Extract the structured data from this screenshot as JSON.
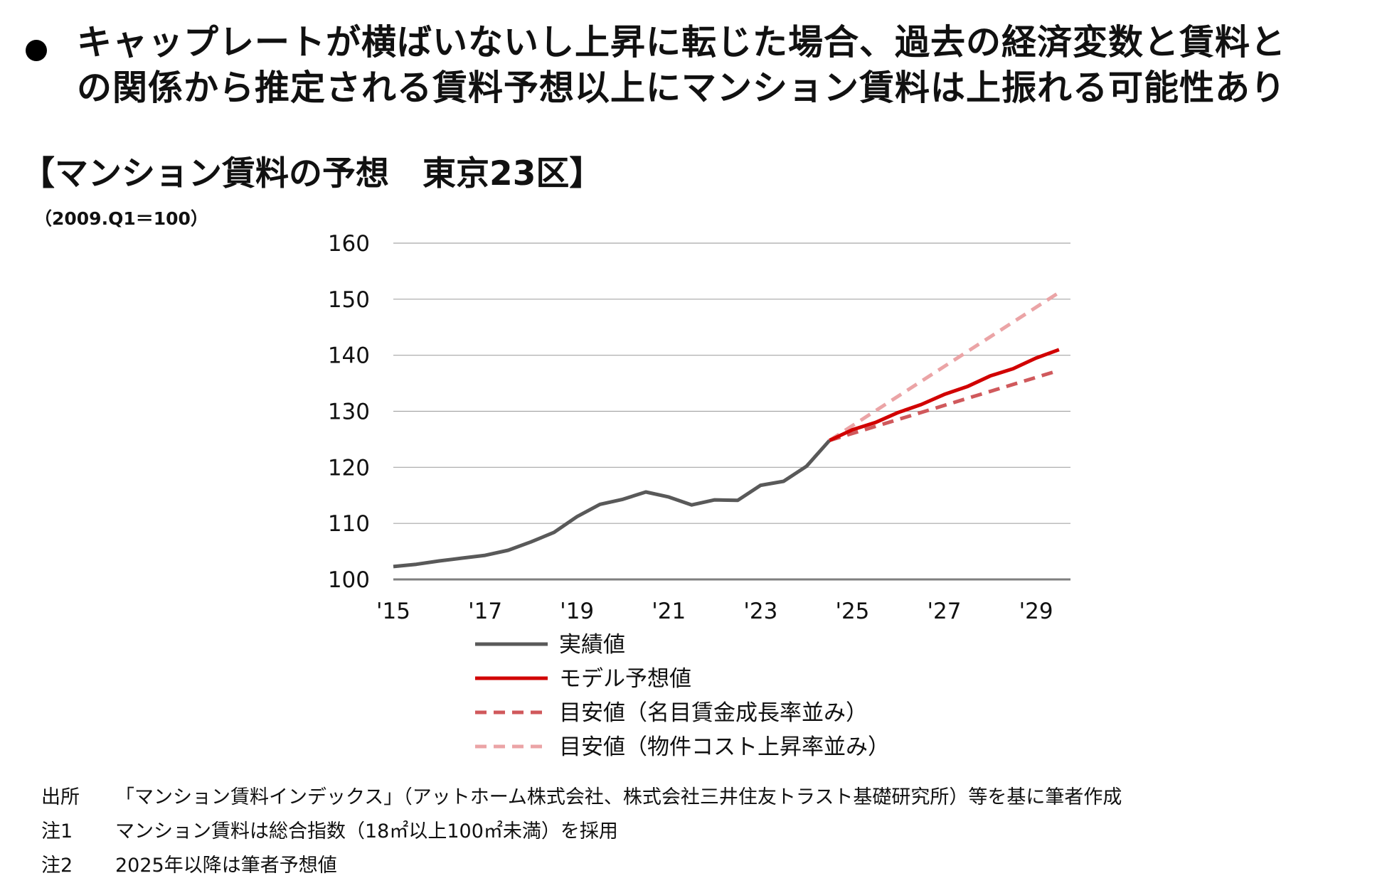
{
  "headline": {
    "line1": "キャップレートが横ばいないし上昇に転じた場合、過去の経済変数と賃料と",
    "line2": "の関係から推定される賃料予想以上にマンション賃料は上振れる可能性あり"
  },
  "chart_title": "【マンション賃料の予想　東京23区】",
  "base_note": "（2009.Q1＝100）",
  "chart_data": {
    "type": "line",
    "title": "マンション賃料の予想　東京23区",
    "ylabel": "2009.Q1＝100",
    "ylim": [
      100,
      160
    ],
    "yticks": [
      100,
      110,
      120,
      130,
      140,
      150,
      160
    ],
    "xlim": [
      2015,
      2029.75
    ],
    "xticks": [
      {
        "value": 2015,
        "label": "'15"
      },
      {
        "value": 2017,
        "label": "'17"
      },
      {
        "value": 2019,
        "label": "'19"
      },
      {
        "value": 2021,
        "label": "'21"
      },
      {
        "value": 2023,
        "label": "'23"
      },
      {
        "value": 2025,
        "label": "'25"
      },
      {
        "value": 2027,
        "label": "'27"
      },
      {
        "value": 2029,
        "label": "'29"
      }
    ],
    "grid": true,
    "legend_position": "bottom",
    "series": [
      {
        "name": "実績値",
        "color": "#595959",
        "style": "solid",
        "points": [
          [
            2015.0,
            102.3
          ],
          [
            2015.5,
            102.7
          ],
          [
            2016.0,
            103.3
          ],
          [
            2016.5,
            103.8
          ],
          [
            2017.0,
            104.3
          ],
          [
            2017.5,
            105.2
          ],
          [
            2018.0,
            106.7
          ],
          [
            2018.5,
            108.4
          ],
          [
            2019.0,
            111.2
          ],
          [
            2019.5,
            113.4
          ],
          [
            2020.0,
            114.3
          ],
          [
            2020.5,
            115.6
          ],
          [
            2021.0,
            114.7
          ],
          [
            2021.5,
            113.3
          ],
          [
            2022.0,
            114.2
          ],
          [
            2022.5,
            114.1
          ],
          [
            2023.0,
            116.8
          ],
          [
            2023.5,
            117.5
          ],
          [
            2024.0,
            120.2
          ],
          [
            2024.5,
            124.8
          ]
        ]
      },
      {
        "name": "モデル予想値",
        "color": "#d10000",
        "style": "solid",
        "points": [
          [
            2024.5,
            124.8
          ],
          [
            2025.0,
            126.7
          ],
          [
            2025.5,
            128.0
          ],
          [
            2026.0,
            129.8
          ],
          [
            2026.5,
            131.2
          ],
          [
            2027.0,
            133.0
          ],
          [
            2027.5,
            134.4
          ],
          [
            2028.0,
            136.3
          ],
          [
            2028.5,
            137.6
          ],
          [
            2029.0,
            139.5
          ],
          [
            2029.5,
            141.0
          ]
        ]
      },
      {
        "name": "目安値（名目賃金成長率並み）",
        "color": "#d0595c",
        "style": "dashed",
        "points": [
          [
            2024.5,
            124.8
          ],
          [
            2029.5,
            137.3
          ]
        ]
      },
      {
        "name": "目安値（物件コスト上昇率並み）",
        "color": "#eba4a6",
        "style": "dashed",
        "points": [
          [
            2024.5,
            124.8
          ],
          [
            2029.5,
            151.2
          ]
        ]
      }
    ]
  },
  "footnotes": [
    {
      "key": "出所",
      "text": "「マンション賃料インデックス」（アットホーム株式会社、株式会社三井住友トラスト基礎研究所）等を基に筆者作成"
    },
    {
      "key": "注1",
      "text": "マンション賃料は総合指数（18㎡以上100㎡未満）を採用"
    },
    {
      "key": "注2",
      "text": "2025年以降は筆者予想値"
    }
  ]
}
